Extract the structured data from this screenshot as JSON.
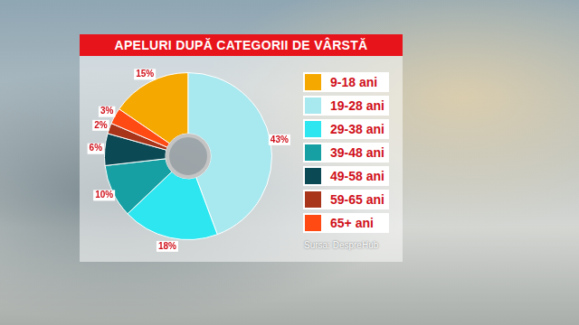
{
  "chart_data": {
    "type": "doughnut",
    "title": "APELURI DUPĂ CATEGORII DE VÂRSTĂ",
    "categories": [
      "9-18 ani",
      "19-28 ani",
      "29-38 ani",
      "39-48 ani",
      "49-58 ani",
      "59-65 ani",
      "65+ ani"
    ],
    "values": [
      15,
      43,
      18,
      10,
      6,
      2,
      3
    ],
    "value_labels": [
      "15%",
      "43%",
      "18%",
      "10%",
      "6%",
      "2%",
      "3%"
    ],
    "colors": [
      "#f5a800",
      "#a8e8ef",
      "#2ee6f0",
      "#17a0a3",
      "#0b4a55",
      "#a8341a",
      "#ff4a14"
    ],
    "legend": "right",
    "data_labels": true,
    "source": "Sursa: DespreHub"
  }
}
